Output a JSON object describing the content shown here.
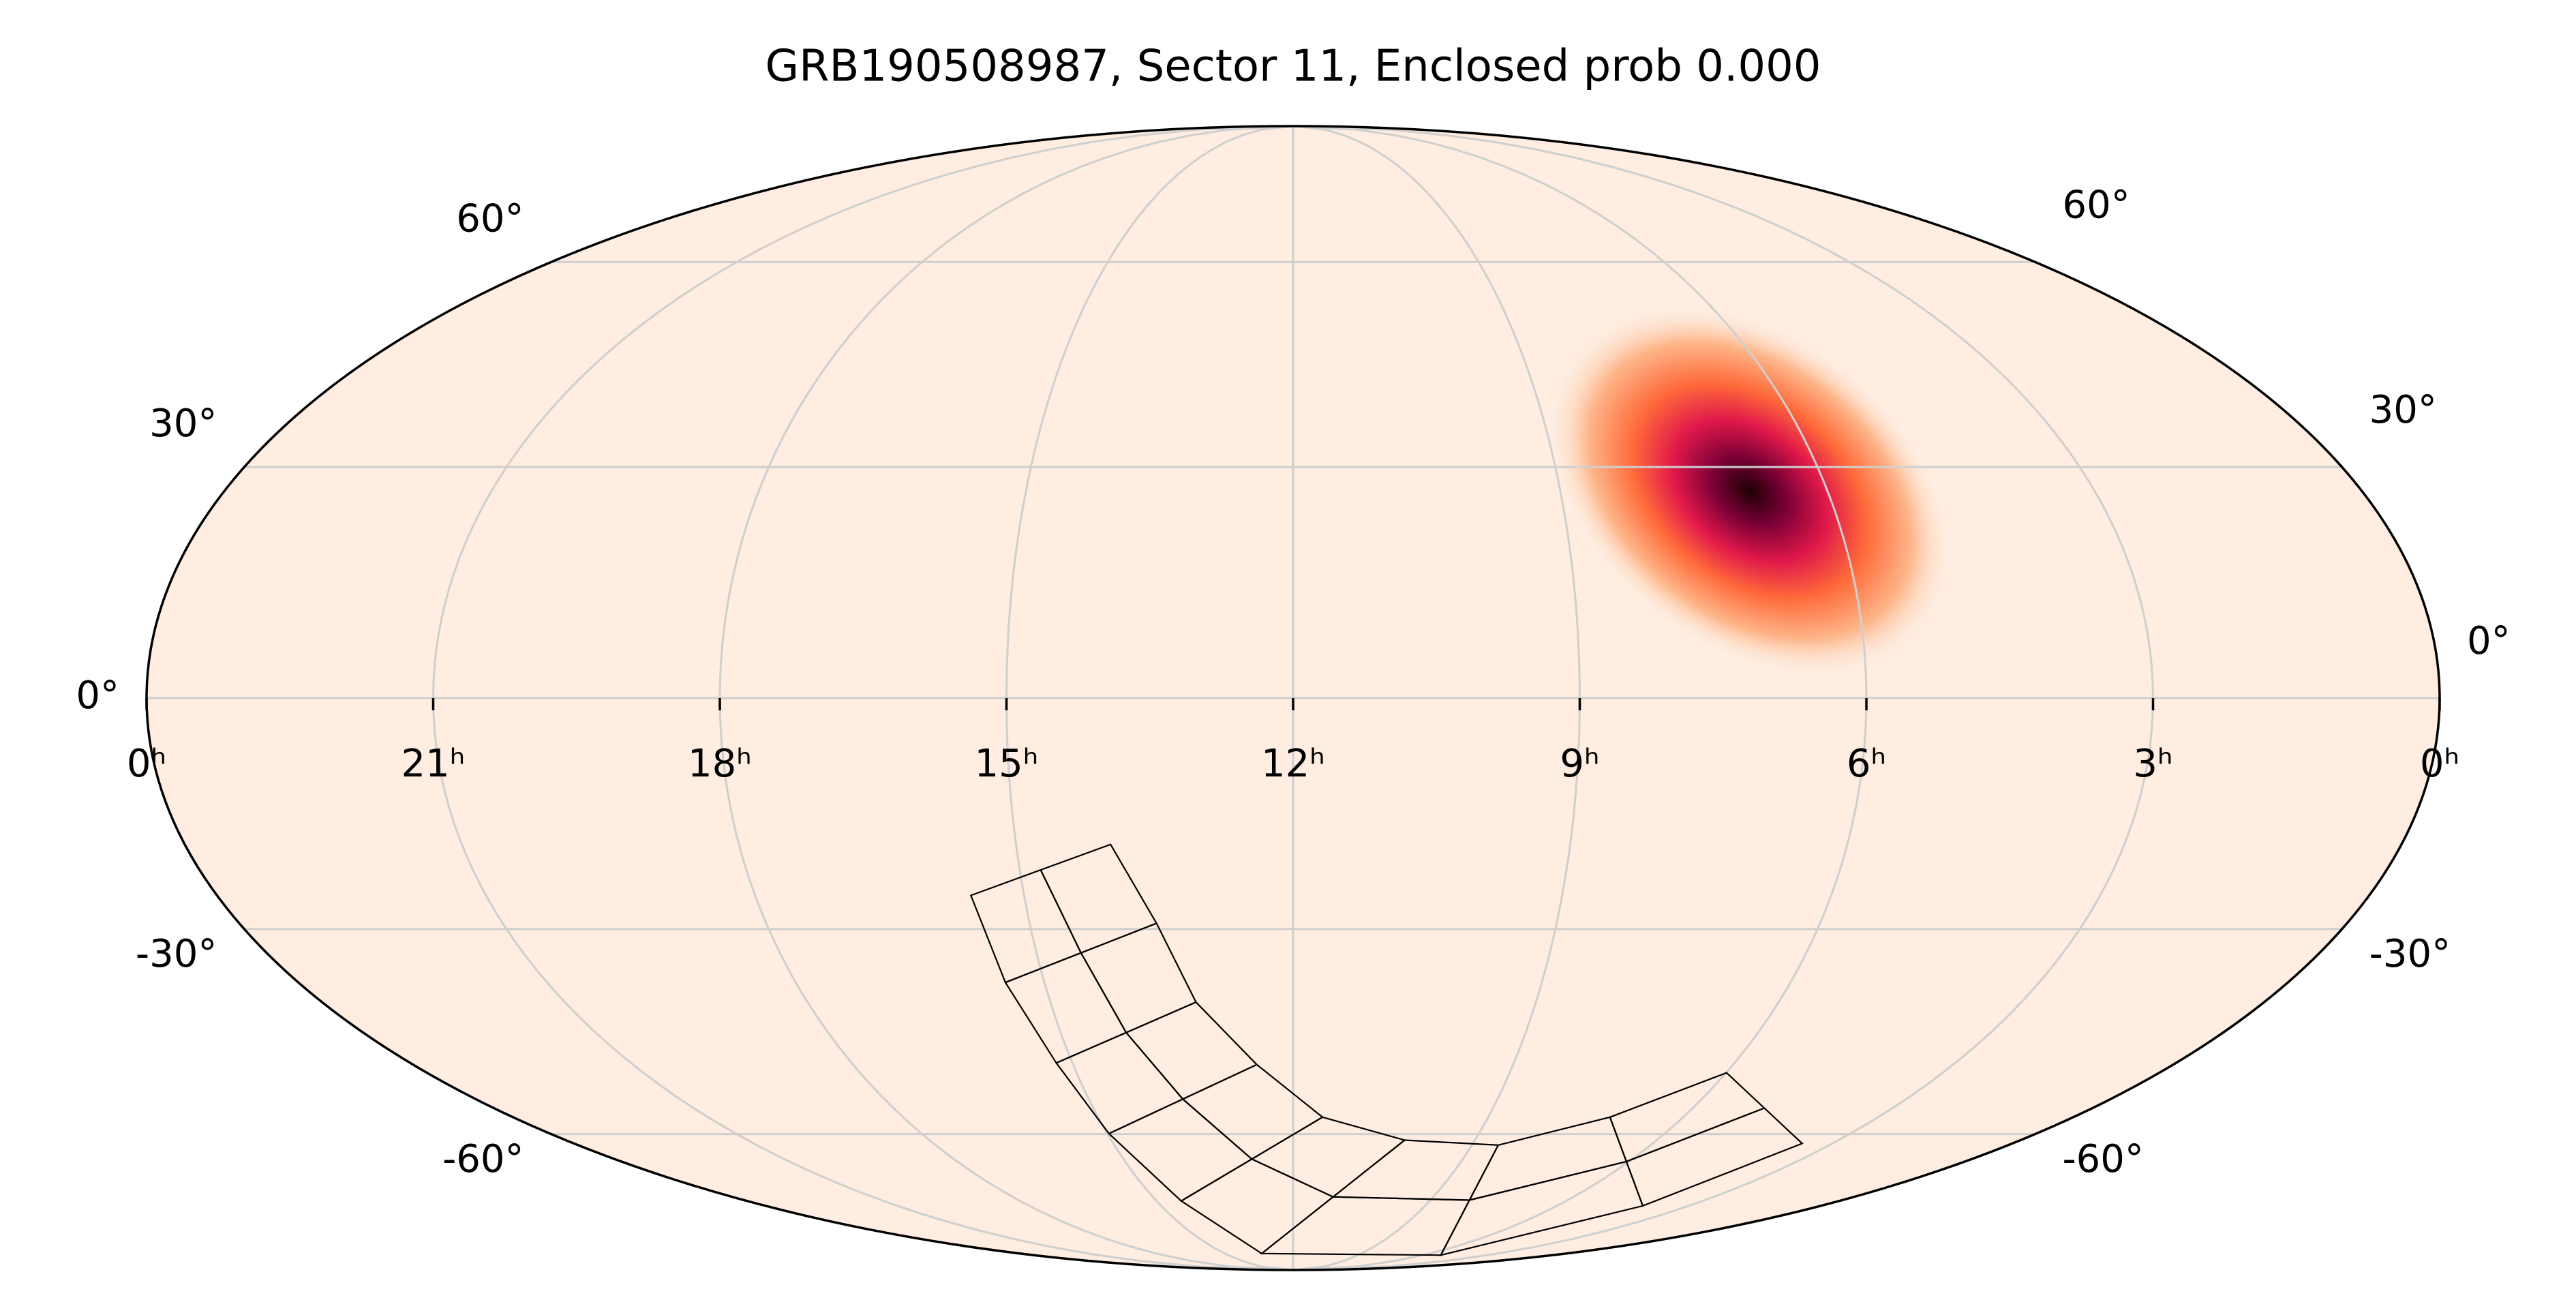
{
  "chart_data": {
    "type": "mollweide",
    "title": "GRB190508987, Sector 11, Enclosed prob 0.000",
    "xlim": [
      24,
      0
    ],
    "ylim": [
      -90,
      90
    ],
    "xticks": [
      {
        "value": 24,
        "label": "0ʰ"
      },
      {
        "value": 21,
        "label": "21ʰ"
      },
      {
        "value": 18,
        "label": "18ʰ"
      },
      {
        "value": 15,
        "label": "15ʰ"
      },
      {
        "value": 12,
        "label": "12ʰ"
      },
      {
        "value": 9,
        "label": "9ʰ"
      },
      {
        "value": 6,
        "label": "6ʰ"
      },
      {
        "value": 3,
        "label": "3ʰ"
      },
      {
        "value": 0,
        "label": "0ʰ"
      }
    ],
    "yticks": [
      {
        "value": -60,
        "label": "-60°"
      },
      {
        "value": -30,
        "label": "-30°"
      },
      {
        "value": 0,
        "label": "0°"
      },
      {
        "value": 30,
        "label": "30°"
      },
      {
        "value": 60,
        "label": "60°"
      }
    ],
    "grid": true
  }
}
